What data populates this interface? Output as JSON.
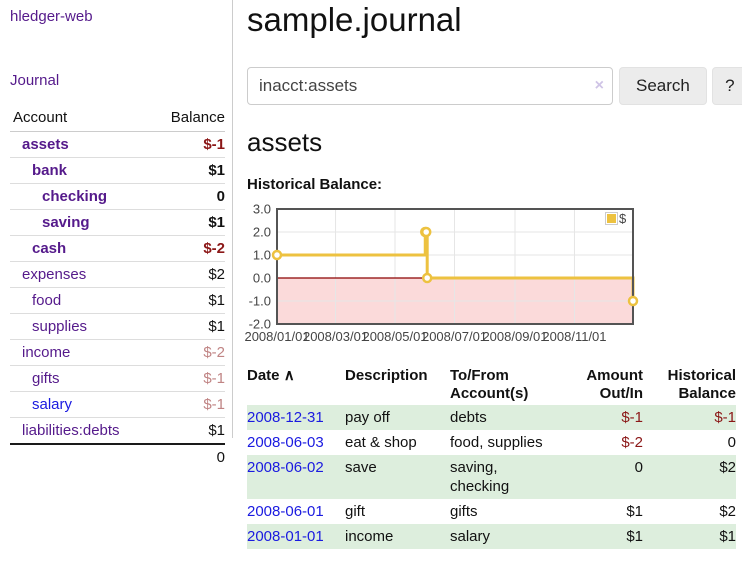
{
  "app": {
    "title": "hledger-web",
    "nav_journal": "Journal"
  },
  "sidebar": {
    "headers": {
      "account": "Account",
      "balance": "Balance"
    },
    "accounts": [
      {
        "name": "assets",
        "balance": "$-1"
      },
      {
        "name": "bank",
        "balance": "$1"
      },
      {
        "name": "checking",
        "balance": "0"
      },
      {
        "name": "saving",
        "balance": "$1"
      },
      {
        "name": "cash",
        "balance": "$-2"
      },
      {
        "name": "expenses",
        "balance": "$2"
      },
      {
        "name": "food",
        "balance": "$1"
      },
      {
        "name": "supplies",
        "balance": "$1"
      },
      {
        "name": "income",
        "balance": "$-2"
      },
      {
        "name": "gifts",
        "balance": "$-1"
      },
      {
        "name": "salary",
        "balance": "$-1"
      },
      {
        "name": "liabilities:debts",
        "balance": "$1"
      }
    ],
    "total": "0"
  },
  "header": {
    "title": "sample.journal"
  },
  "search": {
    "value": "inacct:assets",
    "clear_icon": "×",
    "button": "Search",
    "help_button": "?"
  },
  "account_page": {
    "heading": "assets",
    "chart_heading": "Historical Balance:"
  },
  "chart_data": {
    "type": "line",
    "step": true,
    "title": "Historical Balance",
    "series": [
      {
        "name": "$",
        "color": "#edc240",
        "points": [
          [
            "2008-01-01",
            1.0
          ],
          [
            "2008-06-01",
            2.0
          ],
          [
            "2008-06-02",
            2.0
          ],
          [
            "2008-06-03",
            0.0
          ],
          [
            "2008-12-31",
            -1.0
          ]
        ]
      }
    ],
    "xrange": [
      "2008-01-01",
      "2008-12-31"
    ],
    "ylim": [
      -2.0,
      3.0
    ],
    "yticks": [
      "3.0",
      "2.0",
      "1.0",
      "0.0",
      "-1.0",
      "-2.0"
    ],
    "xticks": [
      "2008/01/01",
      "2008/03/01",
      "2008/05/01",
      "2008/07/01",
      "2008/09/01",
      "2008/11/01"
    ],
    "grid": true,
    "legend": "$",
    "legend_position": "top-right",
    "negative_region_color": "#fbdada",
    "zero_line_color": "#8b0000"
  },
  "register": {
    "headers": {
      "date": "Date",
      "sort_indicator": "∧",
      "description": "Description",
      "accounts_line1": "To/From",
      "accounts_line2": "Account(s)",
      "amount_line1": "Amount",
      "amount_line2": "Out/In",
      "balance_line1": "Historical",
      "balance_line2": "Balance"
    },
    "rows": [
      {
        "date": "2008-12-31",
        "description": "pay off",
        "accounts": "debts",
        "amount": "$-1",
        "balance": "$-1"
      },
      {
        "date": "2008-06-03",
        "description": "eat & shop",
        "accounts": "food, supplies",
        "amount": "$-2",
        "balance": "0"
      },
      {
        "date": "2008-06-02",
        "description": "save",
        "accounts": "saving, checking",
        "amount": "0",
        "balance": "$2"
      },
      {
        "date": "2008-06-01",
        "description": "gift",
        "accounts": "gifts",
        "amount": "$1",
        "balance": "$2"
      },
      {
        "date": "2008-01-01",
        "description": "income",
        "accounts": "salary",
        "amount": "$1",
        "balance": "$1"
      }
    ]
  }
}
